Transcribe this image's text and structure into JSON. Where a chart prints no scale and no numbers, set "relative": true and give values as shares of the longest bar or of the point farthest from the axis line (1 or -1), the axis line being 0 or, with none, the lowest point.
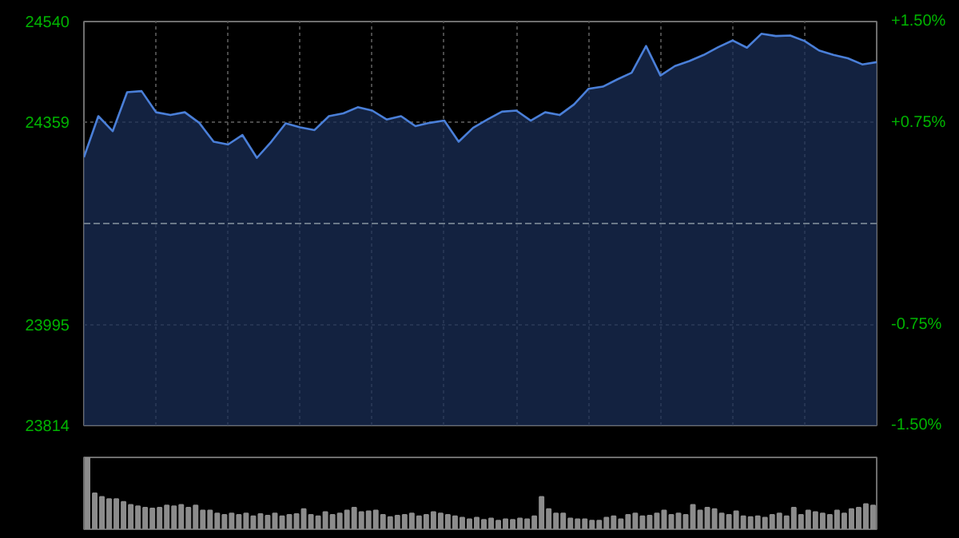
{
  "chart_data": [
    {
      "type": "area",
      "categories": [
        null,
        null,
        null,
        null,
        null,
        null,
        null,
        null,
        null,
        null,
        null,
        null,
        null,
        null,
        null,
        null,
        null,
        null,
        null,
        null,
        null,
        null,
        null,
        null,
        null,
        null,
        null,
        null,
        null,
        null,
        null,
        null,
        null,
        null,
        null,
        null,
        null,
        null,
        null,
        null,
        null,
        null,
        null,
        null,
        null,
        null,
        null,
        null,
        null,
        null,
        null,
        null,
        null,
        null,
        null,
        null
      ],
      "series": [
        {
          "color": "#4a7fd8",
          "values": [
            24296,
            24370,
            24343,
            24413,
            24415,
            24377,
            24372,
            24377,
            24358,
            24324,
            24319,
            24336,
            24295,
            24324,
            24357,
            24350,
            24345,
            24370,
            24375,
            24386,
            24380,
            24364,
            24370,
            24352,
            24358,
            24362,
            24324,
            24349,
            24364,
            24378,
            24380,
            24362,
            24377,
            24372,
            24391,
            24419,
            24423,
            24436,
            24448,
            24496,
            24443,
            24460,
            24469,
            24480,
            24494,
            24506,
            24493,
            24518,
            24514,
            24515,
            24505,
            24488,
            24480,
            24474,
            24463,
            24467
          ]
        }
      ],
      "ylim": [
        23814,
        24540
      ],
      "yticks": [
        23814,
        23995,
        24359,
        24540
      ],
      "y2lim": [
        -1.5,
        1.5
      ],
      "y2ticks": [
        {
          "value": -1.5,
          "label": "-1.50%"
        },
        {
          "value": -0.75,
          "label": "-0.75%"
        },
        {
          "value": 0.75,
          "label": "+0.75%"
        },
        {
          "value": 1.5,
          "label": "+1.50%"
        }
      ],
      "ref_lines": [
        {
          "axis": "y",
          "value": 24177,
          "label": null,
          "color": "#6a7888",
          "line_style": "dashed"
        }
      ],
      "grid": true
    },
    {
      "type": "bar",
      "relative": true,
      "color": "#8c8c8c",
      "categories": [
        null,
        null,
        null,
        null,
        null,
        null,
        null,
        null,
        null,
        null,
        null,
        null,
        null,
        null,
        null,
        null,
        null,
        null,
        null,
        null,
        null,
        null,
        null,
        null,
        null,
        null,
        null,
        null,
        null,
        null,
        null,
        null,
        null,
        null,
        null,
        null,
        null,
        null,
        null,
        null,
        null,
        null,
        null,
        null,
        null,
        null,
        null,
        null,
        null,
        null,
        null,
        null,
        null,
        null,
        null,
        null,
        null,
        null,
        null,
        null,
        null,
        null,
        null,
        null,
        null,
        null,
        null,
        null,
        null,
        null,
        null,
        null,
        null,
        null,
        null,
        null,
        null,
        null,
        null,
        null,
        null,
        null,
        null,
        null,
        null,
        null,
        null,
        null,
        null,
        null,
        null,
        null,
        null,
        null,
        null,
        null,
        null,
        null,
        null,
        null,
        null,
        null,
        null,
        null,
        null,
        null,
        null,
        null,
        null,
        null
      ],
      "values": [
        1.0,
        0.5,
        0.45,
        0.42,
        0.42,
        0.38,
        0.34,
        0.32,
        0.3,
        0.29,
        0.3,
        0.33,
        0.32,
        0.34,
        0.3,
        0.33,
        0.26,
        0.26,
        0.22,
        0.2,
        0.22,
        0.2,
        0.22,
        0.18,
        0.21,
        0.19,
        0.22,
        0.18,
        0.2,
        0.21,
        0.28,
        0.2,
        0.18,
        0.24,
        0.2,
        0.22,
        0.26,
        0.3,
        0.24,
        0.25,
        0.26,
        0.2,
        0.17,
        0.19,
        0.2,
        0.22,
        0.18,
        0.2,
        0.24,
        0.22,
        0.2,
        0.18,
        0.16,
        0.14,
        0.16,
        0.13,
        0.15,
        0.12,
        0.14,
        0.13,
        0.15,
        0.14,
        0.18,
        0.45,
        0.28,
        0.22,
        0.22,
        0.15,
        0.14,
        0.14,
        0.12,
        0.12,
        0.16,
        0.18,
        0.14,
        0.2,
        0.22,
        0.18,
        0.19,
        0.22,
        0.26,
        0.2,
        0.22,
        0.2,
        0.34,
        0.26,
        0.3,
        0.28,
        0.22,
        0.2,
        0.25,
        0.18,
        0.17,
        0.18,
        0.16,
        0.2,
        0.22,
        0.18,
        0.3,
        0.2,
        0.26,
        0.24,
        0.22,
        0.2,
        0.26,
        0.22,
        0.28,
        0.3,
        0.35,
        0.33
      ]
    }
  ]
}
